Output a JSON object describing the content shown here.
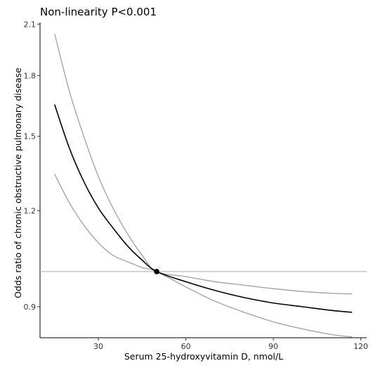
{
  "chart_data": {
    "type": "line",
    "title": "Non-linearity P<0.001",
    "xlabel": "Serum 25-hydroxyvitamin D, nmol/L",
    "ylabel": "Odds ratio of chronic obstructive pulmonary disease",
    "xlim": [
      10,
      122
    ],
    "ylim": [
      0.82,
      2.11
    ],
    "y_scale": "log",
    "x_ticks": [
      30,
      60,
      90,
      120
    ],
    "y_ticks": [
      0.9,
      1.2,
      1.5,
      1.8,
      2.1
    ],
    "grid": false,
    "reference_line_y": 1.0,
    "reference_point": {
      "x": 50,
      "y": 1.0
    },
    "colors": {
      "estimate": "#000000",
      "ci": "#a6a6a6",
      "reference": "#b3b3b3"
    },
    "series": [
      {
        "role": "estimate",
        "x": [
          15,
          20,
          25,
          30,
          35,
          40,
          45,
          50,
          60,
          70,
          80,
          90,
          100,
          110,
          117
        ],
        "y": [
          1.65,
          1.45,
          1.31,
          1.21,
          1.14,
          1.08,
          1.035,
          1.0,
          0.97,
          0.945,
          0.925,
          0.91,
          0.9,
          0.89,
          0.885
        ]
      },
      {
        "role": "upper",
        "x": [
          15,
          20,
          25,
          30,
          35,
          40,
          45,
          50,
          60,
          70,
          80,
          90,
          100,
          110,
          117
        ],
        "y": [
          2.04,
          1.72,
          1.5,
          1.33,
          1.21,
          1.12,
          1.05,
          1.0,
          0.985,
          0.97,
          0.96,
          0.95,
          0.942,
          0.937,
          0.935
        ]
      },
      {
        "role": "lower",
        "x": [
          15,
          20,
          25,
          30,
          35,
          40,
          45,
          50,
          60,
          70,
          80,
          90,
          100,
          110,
          117
        ],
        "y": [
          1.34,
          1.23,
          1.15,
          1.09,
          1.05,
          1.03,
          1.012,
          1.0,
          0.955,
          0.915,
          0.885,
          0.86,
          0.842,
          0.828,
          0.822
        ]
      }
    ]
  }
}
